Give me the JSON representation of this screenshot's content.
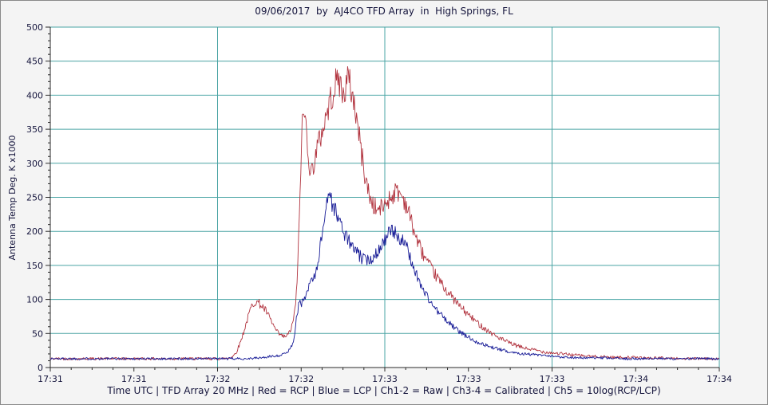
{
  "frame": {
    "background": "#f4f4f4",
    "border_color": "#8a8a8a"
  },
  "chart_data": {
    "type": "line",
    "title": "09/06/2017  by  AJ4CO TFD Array  in  High Springs, FL",
    "ylabel": "Antenna Temp Deg. K x1000",
    "caption": "Time UTC | TFD Array 20 MHz | Red = RCP | Blue = LCP | Ch1-2 = Raw | Ch3-4 = Calibrated | Ch5 = 10log(RCP/LCP)",
    "x_tick_labels": [
      "17:31",
      "17:31",
      "17:32",
      "17:32",
      "17:33",
      "17:33",
      "17:33",
      "17:34",
      "17:34"
    ],
    "x_range_seconds": [
      0,
      180
    ],
    "ylim": [
      0,
      500
    ],
    "y_tick_step": 50,
    "y_minor_step": 10,
    "grid_on": true,
    "vertical_grid_tick_indices": [
      2,
      4,
      6,
      8
    ],
    "plot_bg": "#ffffff",
    "grid_color": "#4aa4a4",
    "axis_color": "#2a2a2a",
    "text_color": "#14143c",
    "legend_position": "none",
    "series": [
      {
        "name": "RCP",
        "color": "#b23540",
        "seed": 42,
        "noise_base": 1.2,
        "noise_scale": 0.055,
        "points": [
          [
            0,
            13
          ],
          [
            15,
            13
          ],
          [
            30,
            13
          ],
          [
            42,
            13
          ],
          [
            46,
            13
          ],
          [
            48,
            14
          ],
          [
            49,
            16
          ],
          [
            50,
            22
          ],
          [
            51,
            35
          ],
          [
            52,
            52
          ],
          [
            53,
            70
          ],
          [
            54,
            88
          ],
          [
            55,
            97
          ],
          [
            56,
            95
          ],
          [
            57,
            90
          ],
          [
            58,
            83
          ],
          [
            59,
            73
          ],
          [
            60,
            62
          ],
          [
            61,
            52
          ],
          [
            62,
            47
          ],
          [
            63,
            45
          ],
          [
            64,
            48
          ],
          [
            65,
            60
          ],
          [
            66,
            90
          ],
          [
            66.6,
            150
          ],
          [
            67,
            220
          ],
          [
            67.4,
            300
          ],
          [
            67.8,
            355
          ],
          [
            68.2,
            375
          ],
          [
            68.6,
            365
          ],
          [
            69,
            345
          ],
          [
            69.4,
            320
          ],
          [
            69.8,
            295
          ],
          [
            70.2,
            285
          ],
          [
            70.6,
            292
          ],
          [
            71,
            305
          ],
          [
            72,
            325
          ],
          [
            73,
            345
          ],
          [
            74,
            365
          ],
          [
            75,
            385
          ],
          [
            76,
            405
          ],
          [
            77,
            418
          ],
          [
            77.6,
            425
          ],
          [
            78.2,
            412
          ],
          [
            78.8,
            398
          ],
          [
            79.4,
            412
          ],
          [
            80,
            424
          ],
          [
            80.6,
            416
          ],
          [
            81.2,
            402
          ],
          [
            82,
            382
          ],
          [
            83,
            345
          ],
          [
            84,
            305
          ],
          [
            85,
            272
          ],
          [
            86,
            250
          ],
          [
            87,
            238
          ],
          [
            88,
            231
          ],
          [
            89,
            234
          ],
          [
            90,
            240
          ],
          [
            91,
            247
          ],
          [
            92,
            253
          ],
          [
            93,
            259
          ],
          [
            94,
            257
          ],
          [
            95,
            249
          ],
          [
            96,
            236
          ],
          [
            97,
            218
          ],
          [
            98,
            198
          ],
          [
            99,
            183
          ],
          [
            100,
            170
          ],
          [
            102,
            149
          ],
          [
            104,
            133
          ],
          [
            106,
            117
          ],
          [
            108,
            104
          ],
          [
            110,
            91
          ],
          [
            112,
            80
          ],
          [
            114,
            70
          ],
          [
            116,
            61
          ],
          [
            118,
            53
          ],
          [
            120,
            46
          ],
          [
            122,
            40
          ],
          [
            124,
            35
          ],
          [
            126,
            31
          ],
          [
            128,
            28
          ],
          [
            130,
            26
          ],
          [
            133,
            23
          ],
          [
            136,
            21
          ],
          [
            140,
            19
          ],
          [
            144,
            17
          ],
          [
            148,
            16
          ],
          [
            152,
            15
          ],
          [
            156,
            15
          ],
          [
            160,
            14
          ],
          [
            165,
            14
          ],
          [
            170,
            13
          ],
          [
            175,
            13
          ],
          [
            180,
            13
          ]
        ]
      },
      {
        "name": "LCP",
        "color": "#161a96",
        "seed": 1337,
        "noise_base": 1.1,
        "noise_scale": 0.05,
        "points": [
          [
            0,
            13
          ],
          [
            15,
            13
          ],
          [
            30,
            13
          ],
          [
            45,
            13
          ],
          [
            52,
            13
          ],
          [
            56,
            14
          ],
          [
            58,
            15
          ],
          [
            60,
            17
          ],
          [
            62,
            18
          ],
          [
            63,
            20
          ],
          [
            64,
            24
          ],
          [
            65,
            32
          ],
          [
            65.6,
            45
          ],
          [
            66,
            62
          ],
          [
            66.4,
            78
          ],
          [
            66.8,
            90
          ],
          [
            67.2,
            97
          ],
          [
            67.6,
            92
          ],
          [
            68,
            99
          ],
          [
            68.4,
            108
          ],
          [
            68.8,
            104
          ],
          [
            69.2,
            112
          ],
          [
            69.6,
            120
          ],
          [
            70,
            128
          ],
          [
            70.4,
            134
          ],
          [
            70.8,
            129
          ],
          [
            71.2,
            136
          ],
          [
            71.6,
            146
          ],
          [
            72,
            157
          ],
          [
            72.5,
            172
          ],
          [
            73,
            190
          ],
          [
            73.5,
            212
          ],
          [
            74,
            232
          ],
          [
            74.5,
            247
          ],
          [
            75,
            257
          ],
          [
            75.4,
            251
          ],
          [
            75.8,
            242
          ],
          [
            76.2,
            236
          ],
          [
            76.6,
            231
          ],
          [
            77,
            227
          ],
          [
            77.5,
            221
          ],
          [
            78,
            213
          ],
          [
            78.5,
            205
          ],
          [
            79,
            199
          ],
          [
            80,
            189
          ],
          [
            81,
            180
          ],
          [
            82,
            172
          ],
          [
            83,
            165
          ],
          [
            84,
            160
          ],
          [
            85,
            157
          ],
          [
            86,
            159
          ],
          [
            87,
            164
          ],
          [
            88,
            171
          ],
          [
            89,
            179
          ],
          [
            90,
            188
          ],
          [
            91,
            196
          ],
          [
            92,
            200
          ],
          [
            93,
            196
          ],
          [
            94,
            191
          ],
          [
            95,
            185
          ],
          [
            96,
            174
          ],
          [
            97,
            159
          ],
          [
            98,
            144
          ],
          [
            99,
            130
          ],
          [
            100,
            118
          ],
          [
            101,
            108
          ],
          [
            102,
            99
          ],
          [
            103,
            91
          ],
          [
            104,
            84
          ],
          [
            106,
            72
          ],
          [
            108,
            62
          ],
          [
            110,
            53
          ],
          [
            112,
            46
          ],
          [
            114,
            40
          ],
          [
            116,
            35
          ],
          [
            118,
            31
          ],
          [
            120,
            28
          ],
          [
            122,
            25
          ],
          [
            124,
            23
          ],
          [
            126,
            21
          ],
          [
            128,
            20
          ],
          [
            130,
            19
          ],
          [
            133,
            17
          ],
          [
            136,
            16
          ],
          [
            140,
            15
          ],
          [
            144,
            14
          ],
          [
            148,
            14
          ],
          [
            155,
            13
          ],
          [
            162,
            13
          ],
          [
            170,
            13
          ],
          [
            180,
            13
          ]
        ]
      }
    ]
  }
}
